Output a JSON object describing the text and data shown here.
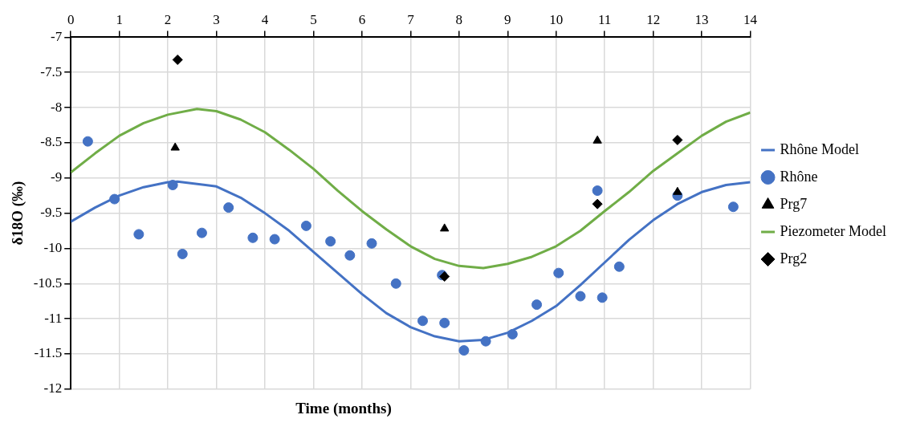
{
  "chart_data": {
    "type": "scatter",
    "xlabel": "Time (months)",
    "ylabel": "δ18O (‰)",
    "xlim": [
      0,
      14
    ],
    "xticks": [
      0,
      1,
      2,
      3,
      4,
      5,
      6,
      7,
      8,
      9,
      10,
      11,
      12,
      13,
      14
    ],
    "ylim": [
      -12,
      -7
    ],
    "yticks": [
      -12,
      -11.5,
      -11,
      -10.5,
      -10,
      -9.5,
      -9,
      -8.5,
      -8,
      -7.5,
      -7
    ],
    "grid": true,
    "legend": "right",
    "series": [
      {
        "name": "Rhône Model",
        "type": "line",
        "color": "#4472c4",
        "marker": "none",
        "x": [
          0,
          0.5,
          1,
          1.5,
          2,
          2.2,
          3,
          3.5,
          4,
          4.5,
          5,
          5.5,
          6,
          6.5,
          7,
          7.5,
          8,
          8.5,
          9,
          9.5,
          10,
          10.5,
          11,
          11.5,
          12,
          12.5,
          13,
          13.5,
          14
        ],
        "values": [
          -9.62,
          -9.42,
          -9.25,
          -9.13,
          -9.06,
          -9.05,
          -9.12,
          -9.28,
          -9.5,
          -9.75,
          -10.05,
          -10.35,
          -10.65,
          -10.92,
          -11.12,
          -11.25,
          -11.32,
          -11.3,
          -11.2,
          -11.03,
          -10.82,
          -10.52,
          -10.2,
          -9.88,
          -9.6,
          -9.37,
          -9.2,
          -9.1,
          -9.06
        ]
      },
      {
        "name": "Rhône",
        "type": "scatter",
        "color": "#4472c4",
        "marker": "circle",
        "x": [
          0.35,
          0.9,
          1.4,
          2.1,
          2.3,
          2.7,
          3.25,
          3.75,
          4.2,
          4.85,
          5.35,
          5.75,
          6.2,
          6.7,
          7.25,
          7.65,
          7.7,
          8.1,
          8.55,
          9.1,
          9.6,
          10.05,
          10.5,
          10.85,
          10.95,
          11.3,
          12.5,
          13.65
        ],
        "values": [
          -8.48,
          -9.3,
          -9.8,
          -9.1,
          -10.08,
          -9.78,
          -9.42,
          -9.85,
          -9.87,
          -9.68,
          -9.9,
          -10.1,
          -9.93,
          -10.5,
          -11.03,
          -10.38,
          -11.06,
          -11.45,
          -11.32,
          -11.22,
          -10.8,
          -10.35,
          -10.68,
          -9.18,
          -10.7,
          -10.26,
          -9.25,
          -9.41
        ]
      },
      {
        "name": "Prg7",
        "type": "scatter",
        "color": "#000000",
        "marker": "triangle",
        "x": [
          2.15,
          7.7,
          10.85,
          12.5
        ],
        "values": [
          -8.57,
          -9.72,
          -8.47,
          -9.2
        ]
      },
      {
        "name": "Piezometer Model",
        "type": "line",
        "color": "#70ad47",
        "marker": "none",
        "x": [
          0,
          0.5,
          1,
          1.5,
          2,
          2.6,
          3,
          3.5,
          4,
          4.5,
          5,
          5.5,
          6,
          6.5,
          7,
          7.5,
          8,
          8.5,
          9,
          9.5,
          10,
          10.5,
          11,
          11.5,
          12,
          12.5,
          13,
          13.5,
          14
        ],
        "values": [
          -8.92,
          -8.65,
          -8.4,
          -8.22,
          -8.1,
          -8.02,
          -8.05,
          -8.17,
          -8.35,
          -8.6,
          -8.87,
          -9.18,
          -9.47,
          -9.73,
          -9.97,
          -10.15,
          -10.25,
          -10.28,
          -10.22,
          -10.12,
          -9.97,
          -9.75,
          -9.47,
          -9.2,
          -8.9,
          -8.65,
          -8.4,
          -8.2,
          -8.07
        ]
      },
      {
        "name": "Prg2",
        "type": "scatter",
        "color": "#000000",
        "marker": "diamond",
        "x": [
          2.2,
          7.7,
          10.85,
          12.5
        ],
        "values": [
          -7.32,
          -10.4,
          -9.37,
          -8.46
        ]
      }
    ]
  }
}
